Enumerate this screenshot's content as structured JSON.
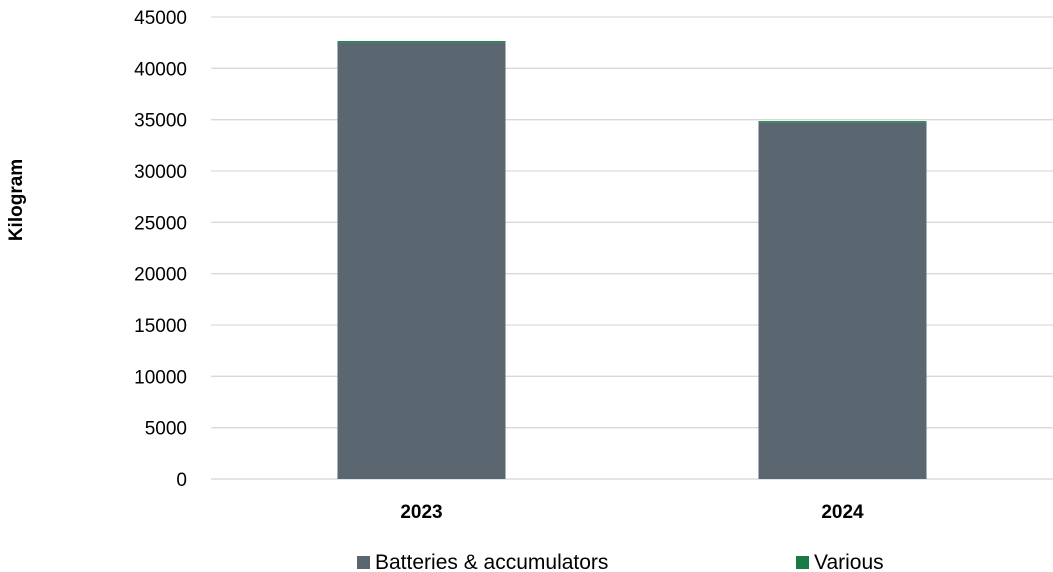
{
  "chart_data": {
    "type": "bar",
    "stacked": true,
    "title": "",
    "xlabel": "",
    "ylabel": "Kilogram",
    "categories": [
      "2023",
      "2024"
    ],
    "series": [
      {
        "name": "Batteries & accumulators",
        "values": [
          42500,
          34700
        ],
        "color": "#5a6770"
      },
      {
        "name": "Various",
        "values": [
          100,
          100
        ],
        "color": "#1a7a45"
      }
    ],
    "ylim": [
      0,
      45000
    ],
    "yticks": [
      0,
      5000,
      10000,
      15000,
      20000,
      25000,
      30000,
      35000,
      40000,
      45000
    ],
    "grid": true,
    "legend_position": "bottom"
  }
}
